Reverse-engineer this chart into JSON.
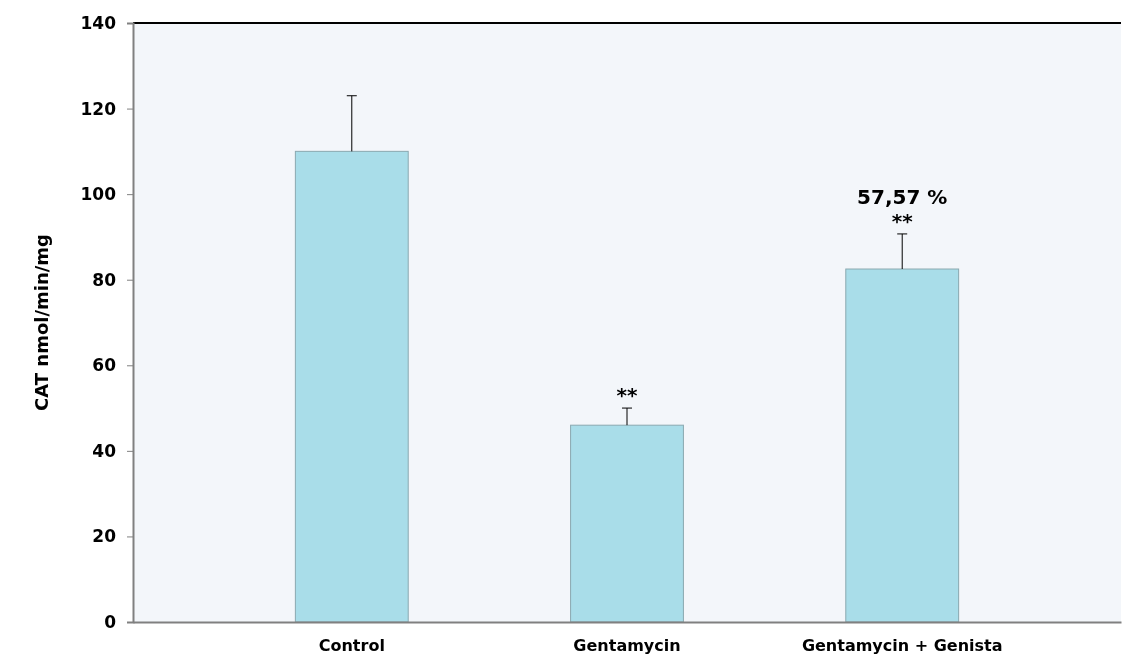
{
  "chart_data": {
    "type": "bar",
    "ylabel": "CAT nmol/min/mg",
    "categories": [
      "Control",
      "Gentamycin",
      "Gentamycin + Genista"
    ],
    "values": [
      110,
      46,
      82.5
    ],
    "errors": [
      [
        110,
        123
      ],
      [
        46,
        50
      ],
      [
        82.5,
        90.7
      ]
    ],
    "color": "#a9dde9",
    "ylim": [
      0,
      140
    ],
    "yticks": [
      0,
      20,
      40,
      60,
      80,
      100,
      120,
      140
    ],
    "grid": false,
    "value_labels": [
      null,
      "**",
      "**"
    ],
    "annotations": [
      "57,57 %"
    ]
  }
}
